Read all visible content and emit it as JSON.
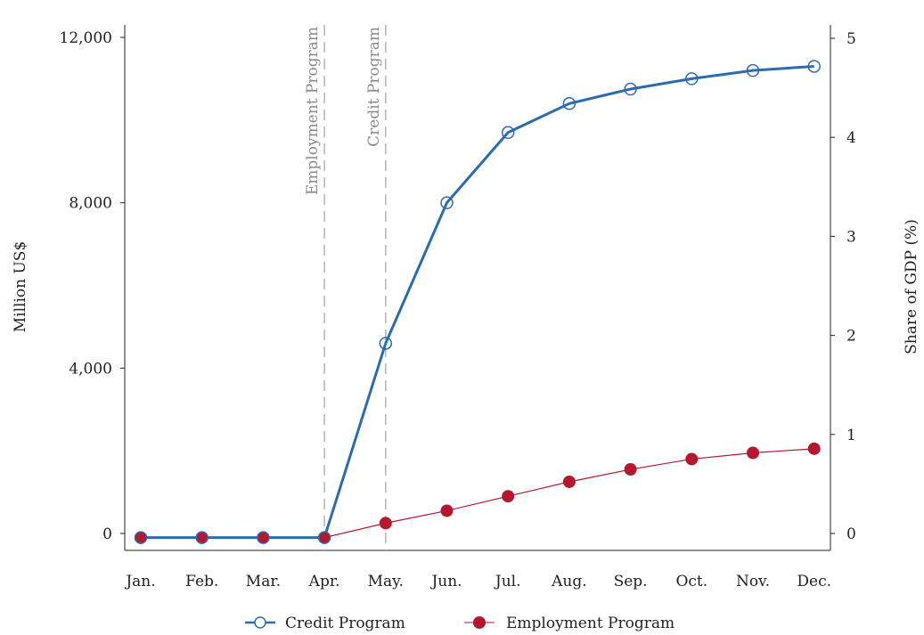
{
  "chart_data": {
    "type": "line",
    "categories": [
      "Jan.",
      "Feb.",
      "Mar.",
      "Apr.",
      "May.",
      "Jun.",
      "Jul.",
      "Aug.",
      "Sep.",
      "Oct.",
      "Nov.",
      "Dec."
    ],
    "ylabel": "Million US$",
    "y2label": "Share of GDP (%)",
    "ylim": [
      -500,
      12300
    ],
    "yticks": [
      0,
      4000,
      8000,
      12000
    ],
    "ytick_labels": [
      "0",
      "4,000",
      "8,000",
      "12,000"
    ],
    "y2lim": [
      -0.2,
      5
    ],
    "y2ticks": [
      0,
      1,
      2,
      3,
      4,
      5
    ],
    "y2tick_labels": [
      "0",
      "1",
      "2",
      "3",
      "4",
      "5"
    ],
    "grid": false,
    "legend_position": "bottom",
    "series": [
      {
        "name": "Credit Program",
        "color": "#2b6cb0",
        "marker": "open-circle",
        "values": [
          -100,
          -100,
          -100,
          -100,
          4600,
          8000,
          9700,
          10400,
          10750,
          11000,
          11200,
          11300
        ]
      },
      {
        "name": "Employment Program",
        "color": "#b5172e",
        "marker": "filled-circle",
        "values": [
          -100,
          -100,
          -100,
          -100,
          250,
          550,
          900,
          1250,
          1550,
          1800,
          1950,
          2050
        ]
      }
    ],
    "annotations": [
      {
        "label": "Employment Program",
        "at": "Apr.",
        "style": "dashed-vertical"
      },
      {
        "label": "Credit Program",
        "at": "May.",
        "style": "dashed-vertical"
      }
    ]
  }
}
